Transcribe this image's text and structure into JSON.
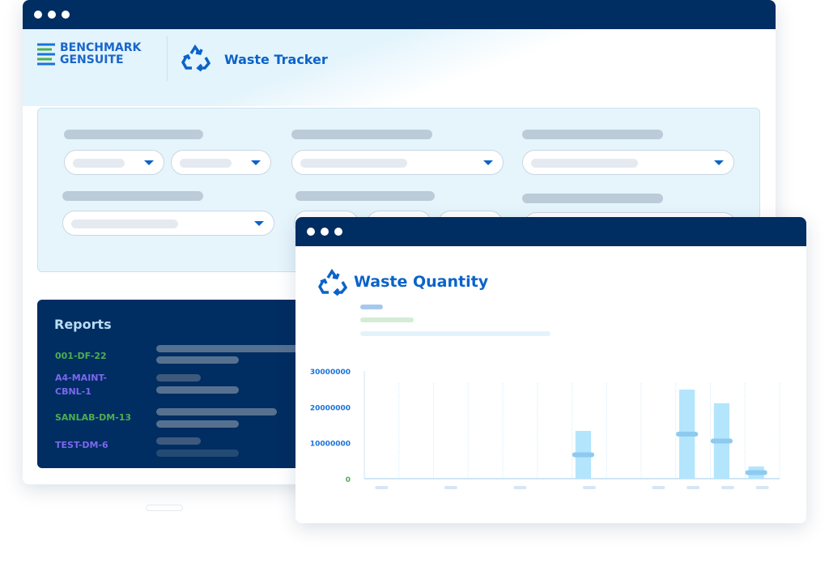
{
  "brand": {
    "logo_line1": "BENCHMARK",
    "logo_line2": "GENSUITE",
    "app_title": "Waste Tracker"
  },
  "reports": {
    "title": "Reports",
    "items": [
      {
        "code": "001-DF-22",
        "color": "#4caf50"
      },
      {
        "code": "A4-MAINT-CBNL-1",
        "color": "#7b68ee"
      },
      {
        "code": "SANLAB-DM-13",
        "color": "#4caf50"
      },
      {
        "code": "TEST-DM-6",
        "color": "#7b68ee"
      }
    ]
  },
  "chart_window": {
    "title": "Waste Quantity",
    "icon": "recycle-icon"
  },
  "colors": {
    "navy": "#002d62",
    "accent": "#0a63c9",
    "bar": "#b3e5fc"
  },
  "chart_data": {
    "type": "bar",
    "categories": [
      "",
      "",
      "",
      "",
      "",
      "",
      "",
      "",
      "",
      "",
      "",
      ""
    ],
    "values": [
      0,
      0,
      0,
      0,
      0,
      0,
      13300000,
      0,
      0,
      24800000,
      21000000,
      3400000
    ],
    "yticks": [
      "0",
      "10000000",
      "20000000",
      "30000000"
    ],
    "ylim": [
      0,
      30000000
    ],
    "grid": "vertical"
  }
}
